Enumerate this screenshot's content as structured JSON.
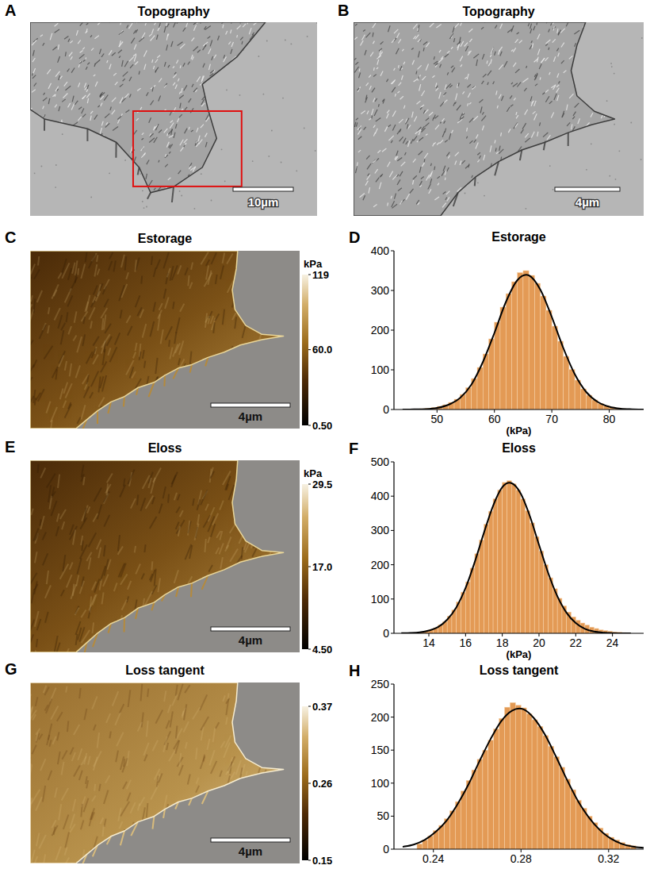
{
  "panels": [
    {
      "panel_label": "A",
      "title": "Topography",
      "scale_bar": "10µm"
    },
    {
      "panel_label": "B",
      "title": "Topography",
      "scale_bar": "4µm"
    },
    {
      "panel_label": "C",
      "title": "Estorage",
      "scale_bar": "4µm",
      "colorbar": {
        "unit": "kPa",
        "range": [
          0.5,
          119
        ],
        "ticks": [
          119,
          {
            "value": 60,
            "label": "60.0"
          },
          {
            "value": 0.5,
            "label": "0.50"
          }
        ]
      }
    },
    {
      "panel_label": "E",
      "title": "Eloss",
      "scale_bar": "4µm",
      "colorbar": {
        "unit": "kPa",
        "range": [
          4.5,
          29.5
        ],
        "ticks": [
          29.5,
          {
            "value": 17,
            "label": "17.0"
          },
          {
            "value": 4.5,
            "label": "4.50"
          }
        ]
      }
    },
    {
      "panel_label": "G",
      "title": "Loss tangent",
      "scale_bar": "4µm",
      "colorbar": {
        "range": [
          0.15,
          0.37
        ],
        "ticks": [
          0.37,
          0.26,
          0.15
        ]
      }
    }
  ],
  "chart_data": [
    {
      "panel_label": "D",
      "type": "histogram",
      "title": "Estorage",
      "xlabel": "(kPa)",
      "color": "#e39a55",
      "bins": [
        46,
        47,
        48,
        49,
        50,
        51,
        52,
        53,
        54,
        55,
        56,
        57,
        58,
        59,
        60,
        61,
        62,
        63,
        64,
        65,
        66,
        67,
        68,
        69,
        70,
        71,
        72,
        73,
        74,
        75,
        76,
        77,
        78,
        79,
        80,
        81,
        82,
        83,
        84,
        85
      ],
      "counts": [
        1,
        2,
        3,
        5,
        8,
        12,
        18,
        26,
        38,
        55,
        78,
        106,
        140,
        178,
        220,
        258,
        292,
        322,
        345,
        350,
        338,
        318,
        286,
        250,
        210,
        172,
        134,
        101,
        74,
        52,
        36,
        24,
        15,
        10,
        6,
        4,
        2,
        1,
        1
      ],
      "xlim": [
        42.5,
        86
      ],
      "ylim": [
        0,
        400
      ],
      "xticks": [
        50,
        60,
        70,
        80
      ],
      "yticks": [
        0,
        100,
        200,
        300,
        400
      ],
      "fit": {
        "type": "line",
        "color": "#000000",
        "x": [
          44,
          46,
          48,
          50,
          52,
          54,
          56,
          58,
          60,
          62,
          64,
          66,
          68,
          70,
          72,
          74,
          76,
          78,
          80,
          82,
          84,
          86
        ],
        "values": [
          0,
          0.3,
          1,
          4,
          12,
          29,
          63,
          120,
          193,
          271,
          326,
          338,
          302,
          233,
          155,
          89,
          44,
          19,
          7,
          2,
          0.6,
          0.1
        ]
      }
    },
    {
      "panel_label": "F",
      "type": "histogram",
      "title": "Eloss",
      "xlabel": "(kPa)",
      "color": "#e39a55",
      "bins": [
        13,
        13.25,
        13.5,
        13.75,
        14,
        14.25,
        14.5,
        14.75,
        15,
        15.25,
        15.5,
        15.75,
        16,
        16.25,
        16.5,
        16.75,
        17,
        17.25,
        17.5,
        17.75,
        18,
        18.25,
        18.5,
        18.75,
        19,
        19.25,
        19.5,
        19.75,
        20,
        20.25,
        20.5,
        20.75,
        21,
        21.25,
        21.5,
        21.75,
        22,
        22.25,
        22.5,
        22.75,
        23,
        23.25,
        23.5,
        23.75,
        24,
        24.25,
        24.5,
        24.75,
        25
      ],
      "counts": [
        1,
        2,
        4,
        7,
        11,
        16,
        24,
        34,
        50,
        68,
        92,
        120,
        150,
        190,
        232,
        272,
        318,
        356,
        392,
        418,
        440,
        445,
        436,
        418,
        392,
        358,
        322,
        282,
        240,
        200,
        162,
        130,
        102,
        80,
        62,
        48,
        38,
        30,
        24,
        18,
        14,
        10,
        8,
        6,
        4,
        3,
        2,
        1
      ],
      "xlim": [
        12.1,
        25.7
      ],
      "ylim": [
        0,
        500
      ],
      "xticks": [
        14,
        16,
        18,
        20,
        22,
        24
      ],
      "yticks": [
        0,
        100,
        200,
        300,
        400,
        500
      ],
      "fit": {
        "type": "line",
        "color": "#000000",
        "x": [
          12.5,
          13,
          13.5,
          14,
          14.5,
          15,
          15.5,
          16,
          16.5,
          17,
          17.5,
          18,
          18.5,
          19,
          19.5,
          20,
          20.5,
          21,
          21.5,
          22,
          22.5,
          23,
          23.5,
          24,
          24.5,
          25
        ],
        "values": [
          0.3,
          1,
          3,
          8,
          18,
          40,
          76,
          132,
          208,
          293,
          372,
          426,
          438,
          408,
          342,
          258,
          176,
          108,
          60,
          30,
          13,
          5,
          2,
          0.7,
          0.2,
          0.05
        ]
      }
    },
    {
      "panel_label": "H",
      "type": "histogram",
      "title": "Loss tangent",
      "color": "#e39a55",
      "bins": [
        0.2325,
        0.235,
        0.2375,
        0.24,
        0.2425,
        0.245,
        0.2475,
        0.25,
        0.2525,
        0.255,
        0.2575,
        0.26,
        0.2625,
        0.265,
        0.2675,
        0.27,
        0.2725,
        0.275,
        0.2775,
        0.28,
        0.2825,
        0.285,
        0.2875,
        0.29,
        0.2925,
        0.295,
        0.2975,
        0.3,
        0.3025,
        0.305,
        0.3075,
        0.31,
        0.3125,
        0.315,
        0.3175,
        0.32,
        0.3225,
        0.325,
        0.3275,
        0.33,
        0.3325
      ],
      "counts": [
        8,
        14,
        20,
        28,
        36,
        46,
        58,
        72,
        88,
        104,
        120,
        136,
        150,
        165,
        182,
        198,
        215,
        222,
        218,
        214,
        205,
        196,
        186,
        172,
        156,
        140,
        124,
        106,
        90,
        74,
        62,
        50,
        40,
        32,
        24,
        18,
        14,
        10,
        7,
        5
      ],
      "xlim": [
        0.222,
        0.336
      ],
      "ylim": [
        0,
        250
      ],
      "xticks": [
        0.24,
        0.28,
        0.32
      ],
      "yticks": [
        0,
        50,
        100,
        150,
        200,
        250
      ],
      "fit": {
        "type": "line",
        "color": "#000000",
        "x": [
          0.226,
          0.231,
          0.236,
          0.241,
          0.246,
          0.251,
          0.256,
          0.261,
          0.266,
          0.271,
          0.276,
          0.281,
          0.286,
          0.291,
          0.296,
          0.301,
          0.306,
          0.311,
          0.316,
          0.321,
          0.326,
          0.331,
          0.336
        ],
        "values": [
          3.5,
          7,
          14,
          26,
          43,
          68,
          98,
          133,
          166,
          194,
          210,
          212,
          198,
          173,
          140,
          105,
          73,
          48,
          29,
          16,
          8,
          4,
          2
        ]
      }
    }
  ]
}
